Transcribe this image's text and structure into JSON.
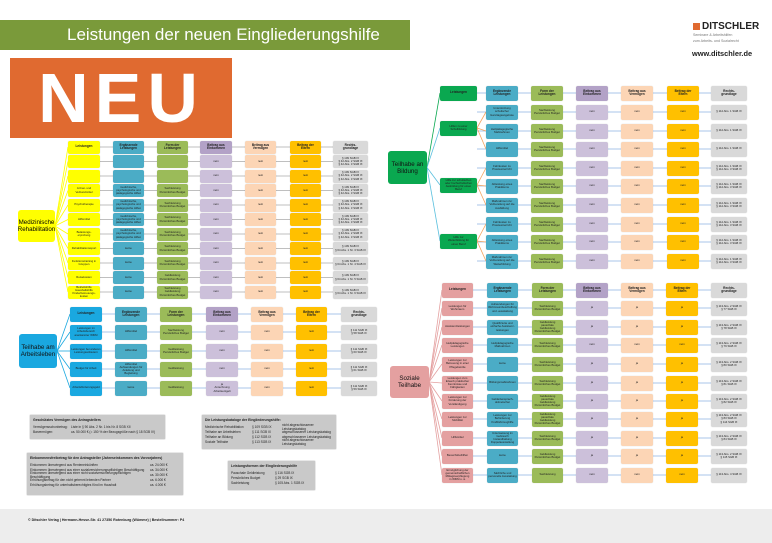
{
  "header": {
    "title": "Leistungen der neuen Eingliederungshilfe",
    "badge": "NEU"
  },
  "logo": {
    "brand": "DITSCHLER",
    "line1": "Seminare & Arbeitshilfen",
    "line2": "zum Arbeits- und Sozialrecht",
    "url": "www.ditschler.de"
  },
  "colors": {
    "title_green": "#7a9a3a",
    "neu_orange": "#e06a30",
    "teal": "#4bacc6",
    "form_green": "#9bbb59",
    "purple": "#b3a2c7",
    "peach": "#fcd5b5",
    "orange": "#ffc000",
    "gray": "#d9d9d9"
  },
  "sections": [
    {
      "id": "reha",
      "root": "Medizinische\nRehabilitation",
      "color": "#ffff00",
      "headers": [
        "Leistungen",
        "Ergänzende\nLeistungen",
        "Form der\nLeistungen",
        "Beitrag aus\nEinkommen",
        "Beitrag aus\nVermögen",
        "Beitrag der\nEltern",
        "Rechts-\ngrundlage"
      ],
      "rows": [
        {
          "cells": [
            "",
            "",
            "",
            "nein",
            "nein",
            "nein",
            "§ 109 SGB IX\n§ 42 Abs. 2 SGB IX\n§ 42 Abs. 3 SGB IX"
          ]
        },
        {
          "cells": [
            "",
            "",
            "",
            "nein",
            "nein",
            "nein",
            "§ 109 SGB IX\n§ 42 Abs. 2 SGB IX\n§ 42 Abs. 3 SGB IX"
          ]
        },
        {
          "cells": [
            "Arznei- und\nVerbandmittel",
            "medizinische,\npsychologische und\npädagogische Hilfen",
            "Sachleistung\nPersönliches Budget",
            "nein",
            "nein",
            "nein",
            "§ 109 SGB IX\n§ 42 Abs. 2 SGB IX\n§ 42 Abs. 3 SGB IX"
          ]
        },
        {
          "cells": [
            "Psychotherapie",
            "medizinische,\npsychologische und\npädagogische Hilfen",
            "Sachleistung\nPersönliches Budget",
            "nein",
            "nein",
            "nein",
            "§ 109 SGB IX\n§ 42 Abs. 2 SGB IX\n§ 42 Abs. 3 SGB IX"
          ]
        },
        {
          "cells": [
            "Hilfsmittel",
            "medizinische,\npsychologische und\npädagogische Hilfen",
            "Sachleistung\nPersönliches Budget",
            "nein",
            "nein",
            "nein",
            "§ 109 SGB IX\n§ 42 Abs. 2 SGB IX\n§ 42 Abs. 3 SGB IX"
          ]
        },
        {
          "cells": [
            "Belastungs-\nerprobung",
            "medizinische,\npsychologische und\npädagogische Hilfen",
            "Sachleistung\nPersönliches Budget",
            "nein",
            "nein",
            "nein",
            "§ 109 SGB IX\n§ 42 Abs. 2 SGB IX\n§ 42 Abs. 3 SGB IX"
          ]
        },
        {
          "cells": [
            "Rehabilitationssport",
            "keine",
            "Sachleistung\nPersönliches Budget",
            "nein",
            "nein",
            "nein",
            "§ 109 SGB IX\n§ 64 Abs. 1 Nr. 3 SGB IX"
          ]
        },
        {
          "cells": [
            "Funktionstraining in\nGruppen",
            "keine",
            "Sachleistung\nPersönliches Budget",
            "nein",
            "nein",
            "nein",
            "§ 109 SGB IX\n§ 64 Abs. 1 Nr. 4 SGB IX"
          ]
        },
        {
          "cells": [
            "Reisekosten",
            "keine",
            "Geldleistung\nPersönliches Budget",
            "nein",
            "nein",
            "nein",
            "§ 109 SGB IX\n§ 64 Abs. 1 Nr. 5 SGB IX"
          ]
        },
        {
          "cells": [
            "Betriebshilfe\nHaushaltshilfe\nKinderbetreuungs-\nkosten",
            "keine",
            "Sachleistung\nGeldleistung\nPersönliches Budget",
            "nein",
            "nein",
            "nein",
            "§ 109 SGB IX\n§ 64 Abs. 1 Nr. 6 SGB IX"
          ]
        }
      ]
    },
    {
      "id": "arbeit",
      "root": "Teilhabe am\nArbeitsleben",
      "color": "#1aa8e0",
      "headers": [
        "Leistungen",
        "Ergänzende\nLeistungen",
        "Form der\nLeistungen",
        "Beitrag aus\nEinkommen",
        "Beitrag aus\nVermögen",
        "Beitrag der\nEltern",
        "Rechts-\ngrundlage"
      ],
      "rows": [
        {
          "cells": [
            "Leistungen im\nArbeitsbereich\nanerkannter WfbM",
            "Hilfsmittel",
            "Sachleistung\nPersönliches Budget",
            "nein",
            "nein",
            "nein",
            "§ 111 SGB IX\n§ 58 SGB IX"
          ]
        },
        {
          "cells": [
            "Leistungen bei anderen\nLeistungsanbietern",
            "Hilfsmittel",
            "Geldleistung\nPersönliches Budget",
            "nein",
            "nein",
            "nein",
            "§ 111 SGB IX\n§ 60 SGB IX"
          ]
        },
        {
          "cells": [
            "Budget für Arbeit",
            "Hilfsmittel\nAufwendungen für\nAnleitung und\nBegleitung",
            "Geldleistung",
            "nein",
            "nein",
            "nein",
            "§ 111 SGB IX\n§ 61 SGB IX"
          ]
        },
        {
          "cells": [
            "Arbeitsförderungsgeld",
            "keine",
            "Geldleistung",
            "ja\nAnrechnung\nArbeitsentgelt",
            "nein",
            "nein",
            "§ 111 SGB IX\n§ 59 SGB IX"
          ]
        }
      ]
    },
    {
      "id": "bildung",
      "root": "Teilhabe an\nBildung",
      "color": "#0aa850",
      "headers": [
        "Leistungen",
        "Ergänzende\nLeistungen",
        "Form der\nLeistungen",
        "Beitrag aus\nEinkommen",
        "Beitrag aus\nVermögen",
        "Beitrag der\nEltern",
        "Rechts-\ngrundlage"
      ],
      "groups": [
        {
          "label": "Hilfen zu einer\nSchulbildung",
          "rows": [
            0,
            1,
            2
          ]
        },
        {
          "label": "Hilfe zur schulischen\noder hochschulischen\nAusbildung für einen\nBeruf",
          "rows": [
            3,
            4,
            5
          ]
        },
        {
          "label": "Hilfe zur\nWeiterbildung für\neinen Beruf",
          "rows": [
            6,
            7,
            8
          ]
        }
      ],
      "rows": [
        {
          "cells": [
            null,
            "Unterstützung\nschulischer\nGanztagsangebote",
            "Sachleistung\nPersönliches Budget",
            "nein",
            "nein",
            "nein",
            "§ 112 Abs. 1 SGB IX"
          ]
        },
        {
          "cells": [
            null,
            "Heilpädagogische\nMaßnahmen",
            "Sachleistung\nPersönliches Budget",
            "nein",
            "nein",
            "nein",
            "§ 112 Abs. 1 SGB IX"
          ]
        },
        {
          "cells": [
            null,
            "Hilfsmittel",
            "Sachleistung\nPersönliches Budget",
            "nein",
            "nein",
            "nein",
            "§ 112 Abs. 1 SGB IX"
          ]
        },
        {
          "cells": [
            null,
            "Fahrkosten zu\nPraxisunterricht",
            "Sachleistung\nPersönliches Budget",
            "nein",
            "nein",
            "nein",
            "§ 112 Abs. 1 SGB IX\n§ 112 Abs. 3 SGB IX"
          ]
        },
        {
          "cells": [
            null,
            "Ableistung eines\nPraktikums",
            "Sachleistung\nPersönliches Budget",
            "nein",
            "nein",
            "nein",
            "§ 112 Abs. 1 SGB IX\n§ 112 Abs. 3 SGB IX"
          ]
        },
        {
          "cells": [
            null,
            "Maßnahmen zur\nVorbereitung auf die\nAusbildung",
            "Sachleistung\nPersönliches Budget",
            "nein",
            "nein",
            "nein",
            "§ 112 Abs. 1 SGB IX\n§ 112 Abs. 3 SGB IX"
          ]
        },
        {
          "cells": [
            null,
            "Fahrkosten zu\nPraxisunterricht",
            "Sachleistung\nPersönliches Budget",
            "nein",
            "nein",
            "nein",
            "§ 112 Abs. 1 SGB IX\n§ 112 Abs. 3 SGB IX"
          ]
        },
        {
          "cells": [
            null,
            "Ableistung eines\nPraktikums",
            "Sachleistung\nPersönliches Budget",
            "nein",
            "nein",
            "nein",
            "§ 112 Abs. 1 SGB IX\n§ 112 Abs. 3 SGB IX"
          ]
        },
        {
          "cells": [
            null,
            "Maßnahmen zur\nVorbereitung auf die\nWeiterbildung",
            "Sachleistung\nPersönliches Budget",
            "nein",
            "nein",
            "nein",
            "§ 112 Abs. 1 SGB IX\n§ 112 Abs. 3 SGB IX"
          ]
        }
      ]
    },
    {
      "id": "sozial",
      "root": "Soziale\nTeilhabe",
      "color": "#e4a0a0",
      "headers": [
        "Leistungen",
        "Ergänzende\nLeistungen",
        "Form der\nLeistungen",
        "Beitrag aus\nEinkommen",
        "Beitrag aus\nVermögen",
        "Beitrag der\nEltern",
        "Rechts-\ngrundlage"
      ],
      "rows": [
        {
          "cells": [
            "Leistungen für\nWohnraum",
            "Aufwendungen für\nWohnraumbeschaffung\nund -ausstattung",
            "Sachleistung\nPersönliches Budget",
            "ja",
            "ja",
            "ja",
            "§ 113 Abs. 2 SGB IX\n§ 77 SGB IX"
          ]
        },
        {
          "cells": [
            "Assistenzleistungen",
            "Qualifizierte und\neinfache Assistenz-\nleistungen",
            "Geldleistung\npauschale Geldleistung\nPersönliches Budget",
            "ja",
            "ja",
            "ja",
            "§ 113 Abs. 2 SGB IX\n§ 78 SGB IX"
          ]
        },
        {
          "cells": [
            "Heilpädagogische\nLeistungen",
            "Heilpädagogische\nMaßnahmen",
            "Sachleistung\nPersönliches Budget",
            "nein",
            "nein",
            "nein",
            "§ 113 Abs. 2 SGB IX\n§ 79 SGB IX"
          ]
        },
        {
          "cells": [
            "Leistungen zur\nBetreuung in einer\nPflegefamilie",
            "keine",
            "Sachleistung\nPersönliches Budget",
            "ja",
            "ja",
            "ja",
            "§ 113 Abs. 2 SGB IX\n§ 80 SGB IX"
          ]
        },
        {
          "cells": [
            "Leistungen zum\nErwerb praktischer\nKenntnisse und\nFähigkeiten",
            "Bildungsmaßnahmen",
            "Sachleistung\nPersönliches Budget",
            "ja",
            "ja",
            "ja",
            "§ 113 Abs. 2 SGB IX\n§ 81 SGB IX"
          ]
        },
        {
          "cells": [
            "Leistungen zur\nFörderung der\nVerständigung",
            "Gebärdensprach-\ndolmetscher",
            "Geldleistung\npauschale Geldleistung\nPersönliches Budget",
            "ja",
            "ja",
            "ja",
            "§ 113 Abs. 2 SGB IX\n§ 82 SGB IX"
          ]
        },
        {
          "cells": [
            "Leistungen zur\nMobilität",
            "Leistungen zur\nBeförderung\nKraftfahrzeughilfe",
            "Geldleistung\npauschale Geldleistung\nPersönliches Budget",
            "ja",
            "ja",
            "ja",
            "§ 113 Abs. 2 SGB IX\n§ 83 SGB IX\n§ 114 SGB IX"
          ]
        },
        {
          "cells": [
            "Hilfsmittel",
            "Unterweisung im\nGebrauch\nInstandhaltung\nDoppelausstattung",
            "Sachleistung\nPersönliches Budget",
            "ja",
            "ja",
            "ja",
            "§ 113 Abs. 2 SGB IX\n§ 84 SGB IX"
          ]
        },
        {
          "cells": [
            "Besuchsbeihilfen",
            "keine",
            "Geldleistung\nPersönliches Budget",
            "ja",
            "ja",
            "ja",
            "§ 113 Abs. 2 SGB IX\n§ 115 SGB IX"
          ]
        },
        {
          "cells": [
            "Ermöglichung der\ngemeinschaftlichen\nMittagsverpflegung\nin WfbM u. ä.",
            "Sächliche und\npersonelle Ausstattung",
            "Sachleistung",
            "nein",
            "nein",
            "nein",
            "§ 113 Abs. 4 SGB IX"
          ]
        }
      ]
    }
  ],
  "notes": [
    {
      "title": "Geschütztes Vermögen des Antragstellers",
      "rows": [
        [
          "Vermögensschonbetrag:",
          "Liste in § 90 Abs. 2 Nr. 1 bis Nr. 8 SGB XII"
        ],
        [
          "Barvermögen:",
          "ca. 50.000 € (= 150 % der Bezugsgröße nach § 18 SGB IV)"
        ]
      ]
    },
    {
      "title": "Einkommensfreibetrag für den Antragsteller (Jahreseinkommen des Vorvorjahres)",
      "rows": [
        [
          "Einkommen überwiegend aus Renteneinkünften",
          "ca. 24.000 €"
        ],
        [
          "Einkommen überwiegend aus einer sozialversicherungspflichtigen Beschäftigung",
          "ca. 34.000 €"
        ],
        [
          "Einkommen überwiegend aus einer nicht sozialversicherungspflichtigen Beschäftigung",
          "ca. 30.000 €"
        ],
        [
          "Erhöhungsbetrag für den nicht getrennt lebenden Partner",
          "ca. 6.000 €"
        ],
        [
          "Erhöhungsbetrag für unterhaltsberechtigtes Kind im Haushalt",
          "ca. 4.000 €"
        ]
      ]
    },
    {
      "title": "Die Leistungskataloge der Eingliederungshilfe:",
      "rows": [
        [
          "Medizinische Rehabilitation",
          "§ 109 SGB IX",
          "nicht abgeschlossener Leistungskatalog"
        ],
        [
          "Teilhabe am Arbeitsleben",
          "§ 111 SGB IX",
          "abgeschlossener Leistungskatalog"
        ],
        [
          "Teilhabe an Bildung",
          "§ 112 SGB IX",
          "abgeschlossener Leistungskatalog"
        ],
        [
          "Soziale Teilhabe",
          "§ 113 SGB IX",
          "nicht abgeschlossener Leistungskatalog"
        ]
      ]
    },
    {
      "title": "Leistungsformen der Eingliederungshilfe",
      "rows": [
        [
          "Pauschale Geldleistung",
          "§ 116 SGB IX"
        ],
        [
          "Persönliches Budget",
          "§ 29 SGB IX"
        ],
        [
          "Sachleistung",
          "§ 105 Abs. 1 SGB IX"
        ]
      ]
    }
  ],
  "footer": "© Ditschler Verlag | Hermann-Hesse-Str. 41 27356 Rotenburg (Wümme) | Bestellnummer: P4"
}
